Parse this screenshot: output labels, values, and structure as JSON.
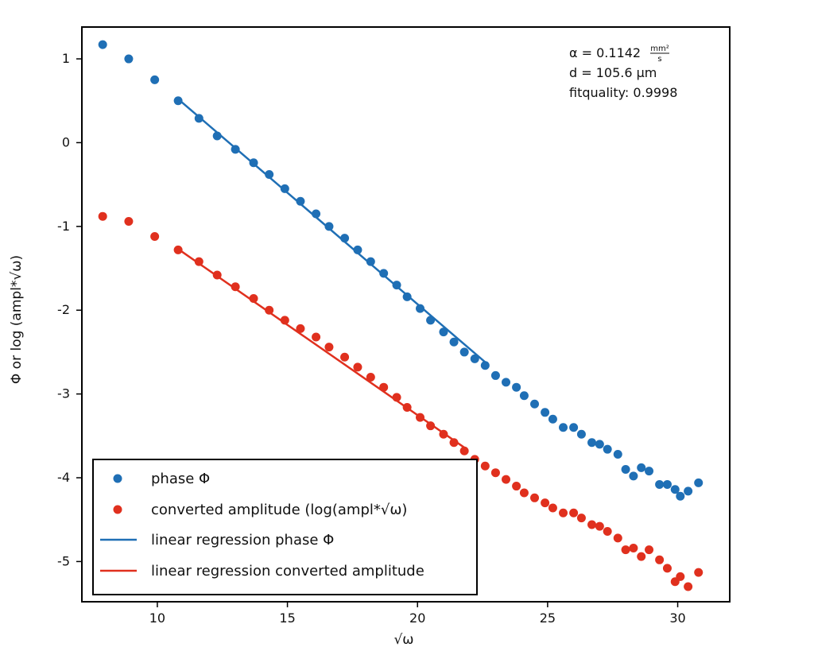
{
  "chart_data": {
    "type": "scatter",
    "xlabel": "√ω",
    "ylabel": "Φ or log (ampl*√ω)",
    "xlim": [
      7.1,
      32.0
    ],
    "ylim": [
      -5.48,
      1.38
    ],
    "xticks": [
      10,
      15,
      20,
      25,
      30
    ],
    "yticks": [
      1,
      0,
      -1,
      -2,
      -3,
      -4,
      -5
    ],
    "colors": {
      "phase": "#1f6fb5",
      "amplitude": "#e0301e",
      "frame": "#000000"
    },
    "annotations": {
      "alpha_prefix": "α = 0.1142",
      "alpha_unit_num": "mm²",
      "alpha_unit_den": "s",
      "d": "d = 105.6 µm",
      "fitquality": "fitquality: 0.9998"
    },
    "legend": {
      "position": "bottom-left",
      "entries": [
        {
          "label": "phase Φ",
          "marker": "dot",
          "color": "#1f6fb5"
        },
        {
          "label": "converted amplitude (log(ampl*√ω)",
          "marker": "dot",
          "color": "#e0301e"
        },
        {
          "label": "linear regression phase Φ",
          "marker": "line",
          "color": "#1f6fb5"
        },
        {
          "label": "linear regression converted amplitude",
          "marker": "line",
          "color": "#e0301e"
        }
      ]
    },
    "series": [
      {
        "name": "phase Φ",
        "kind": "scatter",
        "color": "#1f6fb5",
        "x": [
          7.9,
          8.9,
          9.9,
          10.8,
          11.6,
          12.3,
          13.0,
          13.7,
          14.3,
          14.9,
          15.5,
          16.1,
          16.6,
          17.2,
          17.7,
          18.2,
          18.7,
          19.2,
          19.6,
          20.1,
          20.5,
          21.0,
          21.4,
          21.8,
          22.2,
          22.6,
          23.0,
          23.4,
          23.8,
          24.1,
          24.5,
          24.9,
          25.2,
          25.6,
          26.0,
          26.3,
          26.7,
          27.0,
          27.3,
          27.7,
          28.0,
          28.3,
          28.6,
          28.9,
          29.3,
          29.6,
          29.9,
          30.1,
          30.4,
          30.8
        ],
        "y": [
          1.17,
          1.0,
          0.75,
          0.5,
          0.29,
          0.08,
          -0.08,
          -0.24,
          -0.38,
          -0.55,
          -0.7,
          -0.85,
          -1.0,
          -1.14,
          -1.28,
          -1.42,
          -1.56,
          -1.7,
          -1.84,
          -1.98,
          -2.12,
          -2.26,
          -2.38,
          -2.5,
          -2.58,
          -2.66,
          -2.78,
          -2.86,
          -2.92,
          -3.02,
          -3.12,
          -3.22,
          -3.3,
          -3.4,
          -3.4,
          -3.48,
          -3.58,
          -3.6,
          -3.66,
          -3.72,
          -3.9,
          -3.98,
          -3.88,
          -3.92,
          -4.08,
          -4.08,
          -4.14,
          -4.22,
          -4.16,
          -4.06
        ]
      },
      {
        "name": "converted amplitude (log(ampl*√ω)",
        "kind": "scatter",
        "color": "#e0301e",
        "x": [
          7.9,
          8.9,
          9.9,
          10.8,
          11.6,
          12.3,
          13.0,
          13.7,
          14.3,
          14.9,
          15.5,
          16.1,
          16.6,
          17.2,
          17.7,
          18.2,
          18.7,
          19.2,
          19.6,
          20.1,
          20.5,
          21.0,
          21.4,
          21.8,
          22.2,
          22.6,
          23.0,
          23.4,
          23.8,
          24.1,
          24.5,
          24.9,
          25.2,
          25.6,
          26.0,
          26.3,
          26.7,
          27.0,
          27.3,
          27.7,
          28.0,
          28.3,
          28.6,
          28.9,
          29.3,
          29.6,
          29.9,
          30.1,
          30.4,
          30.8
        ],
        "y": [
          -0.88,
          -0.94,
          -1.12,
          -1.28,
          -1.42,
          -1.58,
          -1.72,
          -1.86,
          -2.0,
          -2.12,
          -2.22,
          -2.32,
          -2.44,
          -2.56,
          -2.68,
          -2.8,
          -2.92,
          -3.04,
          -3.16,
          -3.28,
          -3.38,
          -3.48,
          -3.58,
          -3.68,
          -3.78,
          -3.86,
          -3.94,
          -4.02,
          -4.1,
          -4.18,
          -4.24,
          -4.3,
          -4.36,
          -4.42,
          -4.42,
          -4.48,
          -4.56,
          -4.58,
          -4.64,
          -4.72,
          -4.86,
          -4.84,
          -4.94,
          -4.86,
          -4.98,
          -5.08,
          -5.24,
          -5.18,
          -5.3,
          -5.13
        ]
      },
      {
        "name": "linear regression phase Φ",
        "kind": "line",
        "color": "#1f6fb5",
        "x": [
          10.8,
          22.6
        ],
        "y": [
          0.52,
          -2.62
        ]
      },
      {
        "name": "linear regression converted amplitude",
        "kind": "line",
        "color": "#e0301e",
        "x": [
          10.8,
          21.8
        ],
        "y": [
          -1.27,
          -3.64
        ]
      }
    ]
  }
}
